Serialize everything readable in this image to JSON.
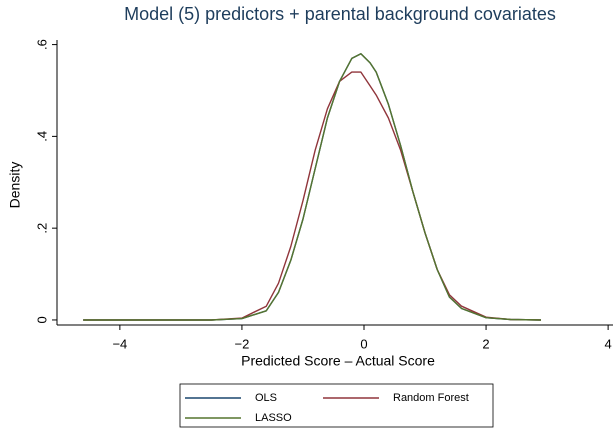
{
  "chart_data": {
    "type": "line",
    "title": "Model (5) predictors + parental background covariates",
    "x_label": "Predicted Score – Actual Score",
    "y_label": "Density",
    "x": [
      -4.6,
      -4,
      -3,
      -2.5,
      -2,
      -1.6,
      -1.4,
      -1.2,
      -1,
      -0.8,
      -0.6,
      -0.4,
      -0.2,
      -0.05,
      0.1,
      0.2,
      0.4,
      0.6,
      0.8,
      1,
      1.2,
      1.4,
      1.6,
      2,
      2.4,
      2.9
    ],
    "series": [
      {
        "name": "OLS",
        "color": "#1a476f",
        "values": [
          0,
          0,
          0,
          0,
          0.003,
          0.02,
          0.06,
          0.13,
          0.22,
          0.33,
          0.44,
          0.52,
          0.57,
          0.58,
          0.56,
          0.54,
          0.47,
          0.38,
          0.28,
          0.19,
          0.11,
          0.05,
          0.025,
          0.005,
          0.001,
          0
        ]
      },
      {
        "name": "Random Forest",
        "color": "#90353b",
        "values": [
          0,
          0,
          0,
          0,
          0.004,
          0.03,
          0.08,
          0.16,
          0.26,
          0.37,
          0.46,
          0.52,
          0.54,
          0.54,
          0.51,
          0.49,
          0.44,
          0.37,
          0.28,
          0.19,
          0.11,
          0.055,
          0.03,
          0.006,
          0.001,
          0
        ]
      },
      {
        "name": "LASSO",
        "color": "#55752f",
        "values": [
          0,
          0,
          0,
          0,
          0.003,
          0.02,
          0.06,
          0.13,
          0.22,
          0.33,
          0.44,
          0.52,
          0.57,
          0.58,
          0.56,
          0.54,
          0.47,
          0.38,
          0.28,
          0.19,
          0.11,
          0.05,
          0.025,
          0.005,
          0.001,
          0
        ]
      }
    ],
    "xlim": [
      -5.03,
      4.08
    ],
    "ylim": [
      -0.011,
      0.61
    ],
    "xticks": [
      {
        "value": -4,
        "label": "−4"
      },
      {
        "value": -2,
        "label": "−2"
      },
      0,
      2,
      4
    ],
    "yticks": [
      0,
      {
        "value": 0.2,
        "label": ".2"
      },
      {
        "value": 0.4,
        "label": ".4"
      },
      {
        "value": 0.6,
        "label": ".6"
      }
    ],
    "grid": false
  }
}
